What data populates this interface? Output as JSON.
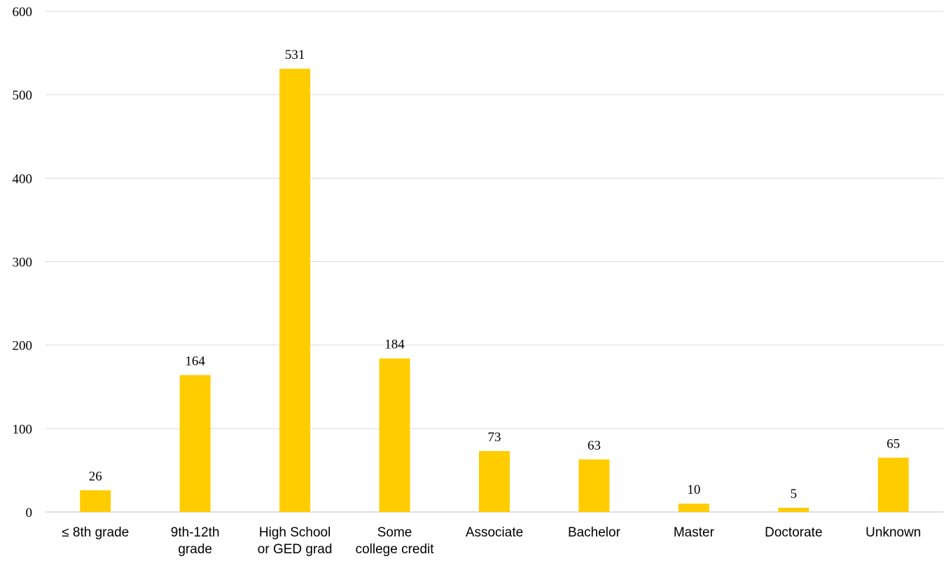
{
  "chart_data": {
    "type": "bar",
    "categories": [
      [
        "≤ 8th grade"
      ],
      [
        "9th-12th",
        "grade"
      ],
      [
        "High School",
        "or GED grad"
      ],
      [
        "Some",
        "college credit"
      ],
      [
        "Associate"
      ],
      [
        "Bachelor"
      ],
      [
        "Master"
      ],
      [
        "Doctorate"
      ],
      [
        "Unknown"
      ]
    ],
    "values": [
      26,
      164,
      531,
      184,
      73,
      63,
      10,
      5,
      65
    ],
    "ylim": [
      0,
      600
    ],
    "yticks": [
      0,
      100,
      200,
      300,
      400,
      500,
      600
    ],
    "grid": true,
    "legend": "none",
    "bar_color": "#FFCC00"
  }
}
